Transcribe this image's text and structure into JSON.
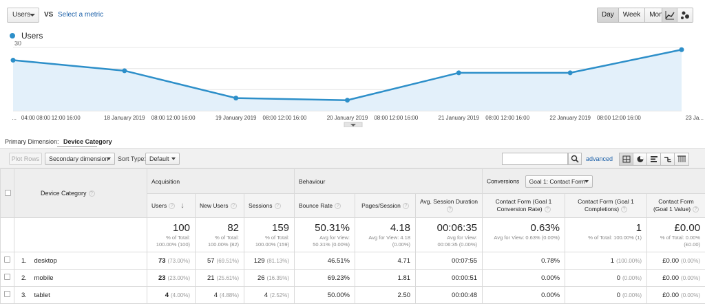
{
  "top": {
    "metric": "Users",
    "vs": "VS",
    "select_metric": "Select a metric",
    "periods": [
      "Day",
      "Week",
      "Month"
    ],
    "active_period": "Day"
  },
  "legend": {
    "series_name": "Users",
    "color": "#2d8fc9"
  },
  "chart_data": {
    "type": "area",
    "series": [
      {
        "name": "Users",
        "values": [
          24,
          19,
          6,
          5,
          18,
          18,
          29
        ]
      }
    ],
    "x_positions_hours": [
      0,
      48,
      96,
      144,
      192,
      240,
      288
    ],
    "y_ticks": [
      30,
      20,
      10
    ],
    "ylim": [
      0,
      33
    ],
    "x_labels": [
      "...",
      "04:00",
      "08:00",
      "12:00",
      "16:00",
      "18 January 2019",
      "08:00",
      "12:00",
      "16:00",
      "19 January 2019",
      "08:00",
      "12:00",
      "16:00",
      "20 January 2019",
      "08:00",
      "12:00",
      "16:00",
      "21 January 2019",
      "08:00",
      "12:00",
      "16:00",
      "22 January 2019",
      "08:00",
      "12:00",
      "16:00",
      "23 Ja..."
    ],
    "line_color": "#2d8fc9",
    "fill_color": "#e3f0fa"
  },
  "dimension": {
    "label": "Primary Dimension:",
    "value": "Device Category"
  },
  "toolbar": {
    "plot_rows": "Plot Rows",
    "secondary_dimension": "Secondary dimension",
    "sort_type_label": "Sort Type:",
    "sort_type_value": "Default",
    "advanced": "advanced"
  },
  "table": {
    "device_category_header": "Device Category",
    "groups": {
      "acquisition": "Acquisition",
      "behaviour": "Behaviour",
      "conversions": "Conversions",
      "goal_select": "Goal 1: Contact Form"
    },
    "columns": {
      "users": "Users",
      "new_users": "New Users",
      "sessions": "Sessions",
      "bounce_rate": "Bounce Rate",
      "pages_session": "Pages/Session",
      "avg_session": "Avg. Session Duration",
      "cf_rate": "Contact Form (Goal 1 Conversion Rate)",
      "cf_completions": "Contact Form (Goal 1 Completions)",
      "cf_value": "Contact Form (Goal 1 Value)"
    },
    "totals": {
      "users": {
        "big": "100",
        "s1": "% of Total:",
        "s2": "100.00% (100)"
      },
      "new_users": {
        "big": "82",
        "s1": "% of Total:",
        "s2": "100.00% (82)"
      },
      "sessions": {
        "big": "159",
        "s1": "% of Total:",
        "s2": "100.00% (159)"
      },
      "bounce_rate": {
        "big": "50.31%",
        "s1": "Avg for View:",
        "s2": "50.31% (0.00%)"
      },
      "pages_session": {
        "big": "4.18",
        "s1": "Avg for View: 4.18",
        "s2": "(0.00%)"
      },
      "avg_session": {
        "big": "00:06:35",
        "s1": "Avg for View:",
        "s2": "00:06:35 (0.00%)"
      },
      "cf_rate": {
        "big": "0.63%",
        "s1": "Avg for View: 0.63% (0.00%)",
        "s2": ""
      },
      "cf_completions": {
        "big": "1",
        "s1": "% of Total: 100.00% (1)",
        "s2": ""
      },
      "cf_value": {
        "big": "£0.00",
        "s1": "% of Total: 0.00%",
        "s2": "(£0.00)"
      }
    },
    "rows": [
      {
        "num": "1.",
        "name": "desktop",
        "users": "73",
        "users_pct": "(73.00%)",
        "new_users": "57",
        "new_users_pct": "(69.51%)",
        "sessions": "129",
        "sessions_pct": "(81.13%)",
        "bounce": "46.51%",
        "pages": "4.71",
        "duration": "00:07:55",
        "cf_rate": "0.78%",
        "cf_comp": "1",
        "cf_comp_pct": "(100.00%)",
        "cf_value": "£0.00",
        "cf_value_pct": "(0.00%)"
      },
      {
        "num": "2.",
        "name": "mobile",
        "users": "23",
        "users_pct": "(23.00%)",
        "new_users": "21",
        "new_users_pct": "(25.61%)",
        "sessions": "26",
        "sessions_pct": "(16.35%)",
        "bounce": "69.23%",
        "pages": "1.81",
        "duration": "00:00:51",
        "cf_rate": "0.00%",
        "cf_comp": "0",
        "cf_comp_pct": "(0.00%)",
        "cf_value": "£0.00",
        "cf_value_pct": "(0.00%)"
      },
      {
        "num": "3.",
        "name": "tablet",
        "users": "4",
        "users_pct": "(4.00%)",
        "new_users": "4",
        "new_users_pct": "(4.88%)",
        "sessions": "4",
        "sessions_pct": "(2.52%)",
        "bounce": "50.00%",
        "pages": "2.50",
        "duration": "00:00:48",
        "cf_rate": "0.00%",
        "cf_comp": "0",
        "cf_comp_pct": "(0.00%)",
        "cf_value": "£0.00",
        "cf_value_pct": "(0.00%)"
      }
    ]
  }
}
